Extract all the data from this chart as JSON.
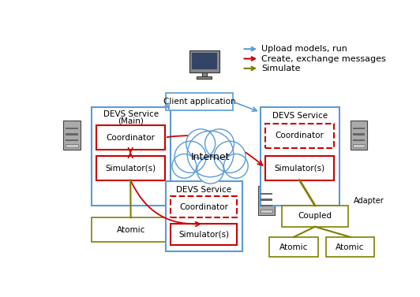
{
  "bg_color": "#ffffff",
  "legend": [
    {
      "label": "Upload models, run",
      "color": "#5b9bd5",
      "lw": 1.5
    },
    {
      "label": "Create, exchange messages",
      "color": "#cc0000",
      "lw": 1.5
    },
    {
      "label": "Simulate",
      "color": "#7f7f00",
      "lw": 1.5
    }
  ],
  "blue": "#5b9bd5",
  "red": "#cc0000",
  "olive": "#7f7f00",
  "font_size": 7.5,
  "legend_fontsize": 8.0
}
